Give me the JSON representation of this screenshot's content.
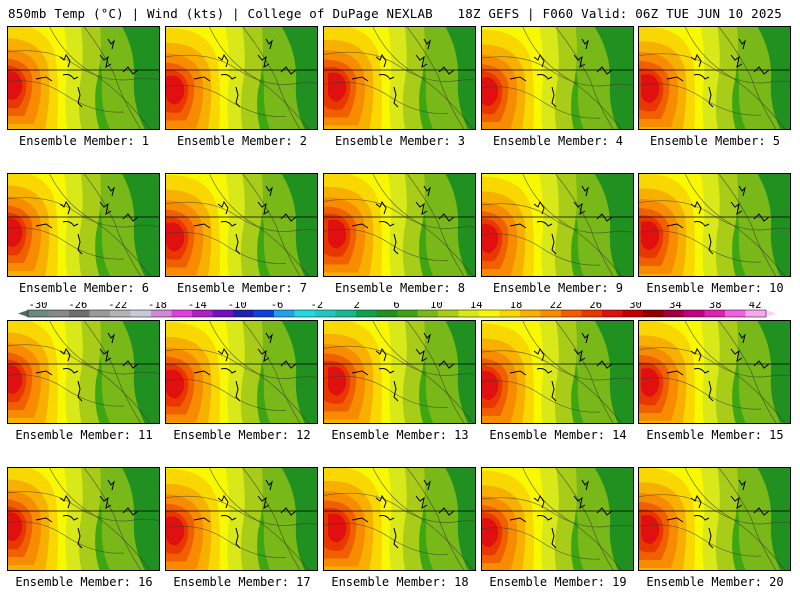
{
  "header": {
    "left": "850mb Temp (°C) | Wind (kts) | College of DuPage NEXLAB",
    "right": "18Z GEFS | F060 Valid: 06Z TUE JUN 10 2025"
  },
  "panels": [
    {
      "label": "Ensemble Member: 1"
    },
    {
      "label": "Ensemble Member: 2"
    },
    {
      "label": "Ensemble Member: 3"
    },
    {
      "label": "Ensemble Member: 4"
    },
    {
      "label": "Ensemble Member: 5"
    },
    {
      "label": "Ensemble Member: 6"
    },
    {
      "label": "Ensemble Member: 7"
    },
    {
      "label": "Ensemble Member: 8"
    },
    {
      "label": "Ensemble Member: 9"
    },
    {
      "label": "Ensemble Member: 10"
    },
    {
      "label": "Ensemble Member: 11"
    },
    {
      "label": "Ensemble Member: 12"
    },
    {
      "label": "Ensemble Member: 13"
    },
    {
      "label": "Ensemble Member: 14"
    },
    {
      "label": "Ensemble Member: 15"
    },
    {
      "label": "Ensemble Member: 16"
    },
    {
      "label": "Ensemble Member: 17"
    },
    {
      "label": "Ensemble Member: 18"
    },
    {
      "label": "Ensemble Member: 19"
    },
    {
      "label": "Ensemble Member: 20"
    }
  ],
  "colorbar": {
    "labels": [
      "-30",
      "-26",
      "-22",
      "-18",
      "-14",
      "-10",
      "-6",
      "-2",
      "2",
      "6",
      "10",
      "14",
      "18",
      "22",
      "26",
      "30",
      "34",
      "38",
      "42"
    ],
    "colors": [
      "#6e8a80",
      "#888888",
      "#6e6e6e",
      "#9a9a9a",
      "#b4b4b4",
      "#c8c8d8",
      "#d088d8",
      "#e040e0",
      "#b020c0",
      "#7010c0",
      "#2020b0",
      "#1040e0",
      "#20a0e8",
      "#20d8e0",
      "#20c8c0",
      "#18b890",
      "#10a050",
      "#209020",
      "#40a018",
      "#78b818",
      "#a8cc18",
      "#d8e818",
      "#f8f800",
      "#f8d800",
      "#f8b000",
      "#f88c00",
      "#f06000",
      "#e83800",
      "#e01010",
      "#c00000",
      "#900000",
      "#a00040",
      "#c00080",
      "#e020b0",
      "#f060e0",
      "#f8a8f0"
    ]
  }
}
